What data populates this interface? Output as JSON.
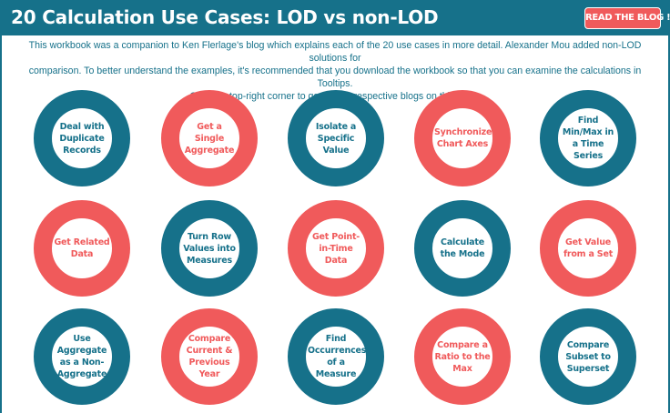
{
  "header": {
    "title": "20 Calculation Use Cases: LOD vs non-LOD",
    "blog_button_label": "READ THE BLOG !"
  },
  "intro": {
    "line1": "This workbook was a companion to Ken Flerlage's blog which explains each of the 20 use cases in more detail. Alexander Mou added non-LOD solutions for",
    "line2": "comparison. To better understand the examples, it's recommended that you download the workbook so that you can examine the calculations in Tooltips.",
    "line3": "Click the top-right corner to go to their respective blogs on this topic."
  },
  "colors": {
    "teal": "#16718a",
    "coral": "#f05a5b",
    "background": "#ffffff"
  },
  "use_cases": [
    {
      "label": "Deal with Duplicate Records",
      "color": "teal"
    },
    {
      "label": "Get a Single Aggregate",
      "color": "coral"
    },
    {
      "label": "Isolate a Specific Value",
      "color": "teal"
    },
    {
      "label": "Synchronize Chart Axes",
      "color": "coral"
    },
    {
      "label": "Find Min/Max in a Time Series",
      "color": "teal"
    },
    {
      "label": "Get Related Data",
      "color": "coral"
    },
    {
      "label": "Turn Row Values into Measures",
      "color": "teal"
    },
    {
      "label": "Get Point-in-Time Data",
      "color": "coral"
    },
    {
      "label": "Calculate the Mode",
      "color": "teal"
    },
    {
      "label": "Get Value from a Set",
      "color": "coral"
    },
    {
      "label": "Use Aggregate as a Non-Aggregate",
      "color": "teal"
    },
    {
      "label": "Compare Current & Previous Year",
      "color": "coral"
    },
    {
      "label": "Find Occurrences of a Measure",
      "color": "teal"
    },
    {
      "label": "Compare a Ratio to the Max",
      "color": "coral"
    },
    {
      "label": "Compare Subset to Superset",
      "color": "teal"
    }
  ]
}
